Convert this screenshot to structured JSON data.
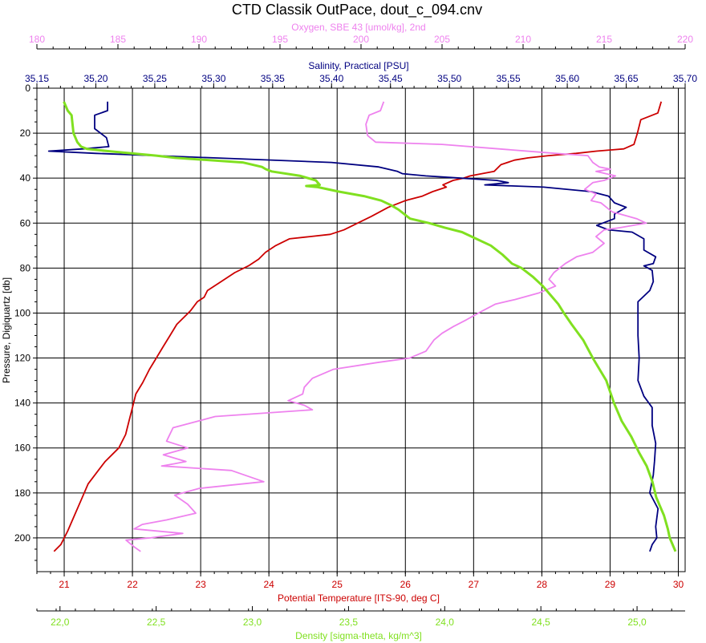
{
  "chart_data": {
    "type": "line",
    "title": "CTD Classik OutPace, dout_c_094.cnv",
    "grid": true,
    "y_axis": {
      "label": "Pressure, Digiquartz [db]",
      "range": [
        0,
        215
      ],
      "ticks": [
        0,
        20,
        40,
        60,
        80,
        100,
        120,
        140,
        160,
        180,
        200
      ],
      "reversed": true
    },
    "axes": {
      "oxygen": {
        "label": "Oxygen, SBE 43 [umol/kg], 2nd",
        "color": "#ee82ee",
        "range": [
          180,
          220
        ],
        "ticks": [
          "180",
          "185",
          "190",
          "195",
          "200",
          "205",
          "210",
          "215",
          "220"
        ],
        "tick_values": [
          180,
          185,
          190,
          195,
          200,
          205,
          210,
          215,
          220
        ]
      },
      "salinity": {
        "label": "Salinity, Practical [PSU]",
        "color": "#000080",
        "range": [
          35.15,
          35.7
        ],
        "ticks": [
          "35,15",
          "35,20",
          "35,25",
          "35,30",
          "35,35",
          "35,40",
          "35,45",
          "35,50",
          "35,55",
          "35,60",
          "35,65",
          "35,70"
        ],
        "tick_values": [
          35.15,
          35.2,
          35.25,
          35.3,
          35.35,
          35.4,
          35.45,
          35.5,
          35.55,
          35.6,
          35.65,
          35.7
        ]
      },
      "temperature": {
        "label": "Potential Temperature [ITS-90, deg C]",
        "color": "#cc0000",
        "range": [
          20.6,
          30.1
        ],
        "ticks": [
          "21",
          "22",
          "23",
          "24",
          "25",
          "26",
          "27",
          "28",
          "29",
          "30"
        ],
        "tick_values": [
          21,
          22,
          23,
          24,
          25,
          26,
          27,
          28,
          29,
          30
        ]
      },
      "density": {
        "label": "Density [sigma-theta, kg/m^3]",
        "color": "#80e020",
        "range": [
          21.88,
          25.25
        ],
        "ticks": [
          "22,0",
          "22,5",
          "23,0",
          "23,5",
          "24,0",
          "24,5",
          "25,0"
        ],
        "tick_values": [
          22.0,
          22.5,
          23.0,
          23.5,
          24.0,
          24.5,
          25.0
        ]
      }
    },
    "series": [
      {
        "name": "Potential Temperature",
        "axis": "temperature",
        "color": "#cc0000",
        "points": [
          [
            29.75,
            6
          ],
          [
            29.7,
            11
          ],
          [
            29.45,
            14
          ],
          [
            29.4,
            20
          ],
          [
            29.35,
            25
          ],
          [
            29.2,
            27
          ],
          [
            28.8,
            28
          ],
          [
            28.5,
            29
          ],
          [
            28.1,
            30
          ],
          [
            27.8,
            31
          ],
          [
            27.6,
            32
          ],
          [
            27.4,
            34
          ],
          [
            27.3,
            37
          ],
          [
            26.95,
            39
          ],
          [
            26.85,
            40
          ],
          [
            26.7,
            41
          ],
          [
            26.55,
            43
          ],
          [
            26.6,
            44
          ],
          [
            26.4,
            46
          ],
          [
            26.25,
            48
          ],
          [
            26.0,
            50
          ],
          [
            25.75,
            53
          ],
          [
            25.5,
            57
          ],
          [
            25.3,
            60
          ],
          [
            25.1,
            63
          ],
          [
            24.9,
            65
          ],
          [
            24.6,
            66
          ],
          [
            24.3,
            67
          ],
          [
            24.1,
            70
          ],
          [
            23.95,
            73
          ],
          [
            23.85,
            76
          ],
          [
            23.7,
            79
          ],
          [
            23.5,
            82
          ],
          [
            23.3,
            86
          ],
          [
            23.1,
            90
          ],
          [
            23.05,
            93
          ],
          [
            22.95,
            95
          ],
          [
            22.85,
            99
          ],
          [
            22.75,
            102
          ],
          [
            22.65,
            105
          ],
          [
            22.55,
            110
          ],
          [
            22.45,
            115
          ],
          [
            22.35,
            120
          ],
          [
            22.25,
            125
          ],
          [
            22.15,
            131
          ],
          [
            22.05,
            136
          ],
          [
            22.0,
            142
          ],
          [
            21.95,
            148
          ],
          [
            21.9,
            154
          ],
          [
            21.8,
            160
          ],
          [
            21.6,
            166
          ],
          [
            21.5,
            170
          ],
          [
            21.35,
            176
          ],
          [
            21.25,
            183
          ],
          [
            21.15,
            190
          ],
          [
            21.05,
            197
          ],
          [
            20.95,
            203
          ],
          [
            20.85,
            206
          ]
        ]
      },
      {
        "name": "Salinity",
        "axis": "salinity",
        "color": "#000080",
        "points": [
          [
            35.21,
            6
          ],
          [
            35.21,
            10
          ],
          [
            35.199,
            12
          ],
          [
            35.199,
            18
          ],
          [
            35.209,
            22
          ],
          [
            35.211,
            26
          ],
          [
            35.189,
            27
          ],
          [
            35.16,
            28
          ],
          [
            35.2,
            29
          ],
          [
            35.3,
            31
          ],
          [
            35.4,
            33
          ],
          [
            35.44,
            35
          ],
          [
            35.456,
            37
          ],
          [
            35.46,
            38
          ],
          [
            35.48,
            39
          ],
          [
            35.51,
            40
          ],
          [
            35.54,
            41
          ],
          [
            35.55,
            42
          ],
          [
            35.53,
            43
          ],
          [
            35.58,
            44
          ],
          [
            35.62,
            46
          ],
          [
            35.635,
            48
          ],
          [
            35.64,
            51
          ],
          [
            35.65,
            53
          ],
          [
            35.64,
            56
          ],
          [
            35.64,
            58
          ],
          [
            35.63,
            60
          ],
          [
            35.625,
            61
          ],
          [
            35.635,
            63
          ],
          [
            35.655,
            64
          ],
          [
            35.665,
            67
          ],
          [
            35.665,
            72
          ],
          [
            35.675,
            75
          ],
          [
            35.673,
            78
          ],
          [
            35.665,
            79
          ],
          [
            35.672,
            81
          ],
          [
            35.673,
            86
          ],
          [
            35.67,
            90
          ],
          [
            35.66,
            95
          ],
          [
            35.66,
            100
          ],
          [
            35.66,
            110
          ],
          [
            35.661,
            120
          ],
          [
            35.66,
            130
          ],
          [
            35.665,
            137
          ],
          [
            35.672,
            142
          ],
          [
            35.672,
            150
          ],
          [
            35.675,
            158
          ],
          [
            35.674,
            166
          ],
          [
            35.673,
            172
          ],
          [
            35.67,
            180
          ],
          [
            35.677,
            187
          ],
          [
            35.675,
            195
          ],
          [
            35.676,
            200
          ],
          [
            35.672,
            203
          ],
          [
            35.67,
            206
          ]
        ]
      },
      {
        "name": "Oxygen",
        "axis": "oxygen",
        "color": "#ee82ee",
        "points": [
          [
            201.4,
            6
          ],
          [
            201.2,
            10
          ],
          [
            200.5,
            12
          ],
          [
            200.3,
            16
          ],
          [
            200.4,
            21
          ],
          [
            200.9,
            24
          ],
          [
            205.0,
            25
          ],
          [
            208.5,
            27
          ],
          [
            212.0,
            29
          ],
          [
            214.0,
            30
          ],
          [
            214.3,
            33
          ],
          [
            214.7,
            35
          ],
          [
            215.4,
            36
          ],
          [
            214.5,
            37
          ],
          [
            215.7,
            39
          ],
          [
            215.0,
            41
          ],
          [
            214.3,
            42
          ],
          [
            213.8,
            45
          ],
          [
            214.5,
            47
          ],
          [
            214.2,
            50
          ],
          [
            214.8,
            51
          ],
          [
            215.5,
            55
          ],
          [
            216.5,
            57
          ],
          [
            217.0,
            58
          ],
          [
            217.6,
            60
          ],
          [
            216.0,
            62
          ],
          [
            215.0,
            63
          ],
          [
            214.5,
            66
          ],
          [
            215.0,
            69
          ],
          [
            214.3,
            73
          ],
          [
            213.3,
            75
          ],
          [
            212.6,
            78
          ],
          [
            211.9,
            82
          ],
          [
            211.6,
            85
          ],
          [
            212.0,
            88
          ],
          [
            211.0,
            91
          ],
          [
            209.5,
            94
          ],
          [
            208.3,
            96
          ],
          [
            207.5,
            99
          ],
          [
            206.5,
            103
          ],
          [
            205.7,
            106
          ],
          [
            205.0,
            109
          ],
          [
            204.5,
            112
          ],
          [
            204.0,
            117
          ],
          [
            203.0,
            120
          ],
          [
            201.0,
            122
          ],
          [
            198.3,
            125
          ],
          [
            197.0,
            129
          ],
          [
            196.5,
            133
          ],
          [
            196.4,
            136
          ],
          [
            195.5,
            139
          ],
          [
            196.5,
            141
          ],
          [
            197.0,
            143
          ],
          [
            191.0,
            146
          ],
          [
            188.4,
            151
          ],
          [
            188.0,
            157
          ],
          [
            189.3,
            160
          ],
          [
            187.8,
            163
          ],
          [
            189.2,
            166
          ],
          [
            188.5,
            167
          ],
          [
            187.7,
            168
          ],
          [
            192.0,
            170
          ],
          [
            194.0,
            175
          ],
          [
            190.0,
            178
          ],
          [
            188.5,
            181
          ],
          [
            189.3,
            185
          ],
          [
            189.8,
            189
          ],
          [
            188.0,
            192
          ],
          [
            186.5,
            194
          ],
          [
            186.0,
            196
          ],
          [
            189.0,
            198
          ],
          [
            187.0,
            200
          ],
          [
            185.5,
            201
          ],
          [
            186.0,
            204
          ],
          [
            186.4,
            206
          ]
        ]
      },
      {
        "name": "Density",
        "axis": "density",
        "color": "#80e020",
        "points": [
          [
            22.02,
            6
          ],
          [
            22.04,
            10
          ],
          [
            22.06,
            12
          ],
          [
            22.07,
            20
          ],
          [
            22.09,
            24
          ],
          [
            22.11,
            26
          ],
          [
            22.14,
            27
          ],
          [
            22.25,
            28
          ],
          [
            22.5,
            30
          ],
          [
            22.6,
            31
          ],
          [
            22.95,
            33
          ],
          [
            23.05,
            35
          ],
          [
            23.07,
            36
          ],
          [
            23.1,
            37
          ],
          [
            23.25,
            39
          ],
          [
            23.33,
            41
          ],
          [
            23.35,
            43
          ],
          [
            23.28,
            43.5
          ],
          [
            23.34,
            44
          ],
          [
            23.45,
            46
          ],
          [
            23.58,
            48
          ],
          [
            23.67,
            50
          ],
          [
            23.72,
            52
          ],
          [
            23.76,
            54
          ],
          [
            23.82,
            58
          ],
          [
            23.92,
            60
          ],
          [
            24.0,
            62
          ],
          [
            24.09,
            64
          ],
          [
            24.14,
            66
          ],
          [
            24.24,
            70
          ],
          [
            24.3,
            74
          ],
          [
            24.35,
            78
          ],
          [
            24.4,
            80
          ],
          [
            24.46,
            84
          ],
          [
            24.51,
            88
          ],
          [
            24.55,
            92
          ],
          [
            24.59,
            96
          ],
          [
            24.62,
            100
          ],
          [
            24.66,
            105
          ],
          [
            24.72,
            112
          ],
          [
            24.77,
            120
          ],
          [
            24.84,
            130
          ],
          [
            24.88,
            140
          ],
          [
            24.92,
            148
          ],
          [
            24.97,
            155
          ],
          [
            25.01,
            162
          ],
          [
            25.05,
            168
          ],
          [
            25.08,
            175
          ],
          [
            25.1,
            182
          ],
          [
            25.14,
            190
          ],
          [
            25.16,
            196
          ],
          [
            25.17,
            200
          ],
          [
            25.2,
            206
          ]
        ]
      }
    ]
  }
}
